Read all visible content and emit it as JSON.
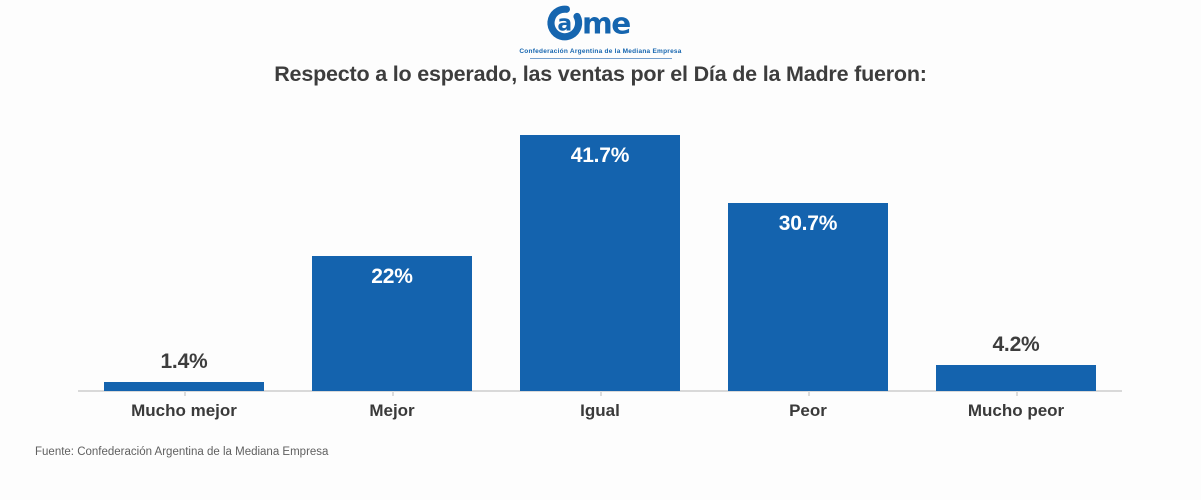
{
  "logo": {
    "wordmark": "ame",
    "ring_letter": "a",
    "tagline": "Confederación Argentina de la Mediana Empresa",
    "color": "#1565af"
  },
  "title": "Respecto a lo esperado, las ventas por el Día de la Madre fueron:",
  "footer": {
    "source": "Fuente: Confederación Argentina de la Mediana Empresa"
  },
  "chart_data": {
    "type": "bar",
    "title": "Respecto a lo esperado, las ventas por el Día de la Madre fueron:",
    "categories": [
      "Mucho mejor",
      "Mejor",
      "Igual",
      "Peor",
      "Mucho peor"
    ],
    "values": [
      1.4,
      22,
      41.7,
      30.7,
      4.2
    ],
    "value_labels": [
      "1.4%",
      "22%",
      "41.7%",
      "30.7%",
      "4.2%"
    ],
    "label_positions": [
      "above",
      "inside",
      "inside",
      "inside",
      "above"
    ],
    "bar_color": "#1463ae",
    "value_label_color_inside": "#ffffff",
    "value_label_color_above": "#3d3d3d",
    "xlabel": "",
    "ylabel": "",
    "ylim": [
      0,
      45
    ],
    "grid": false,
    "legend": "none",
    "source": "Fuente: Confederación Argentina de la Mediana Empresa"
  }
}
